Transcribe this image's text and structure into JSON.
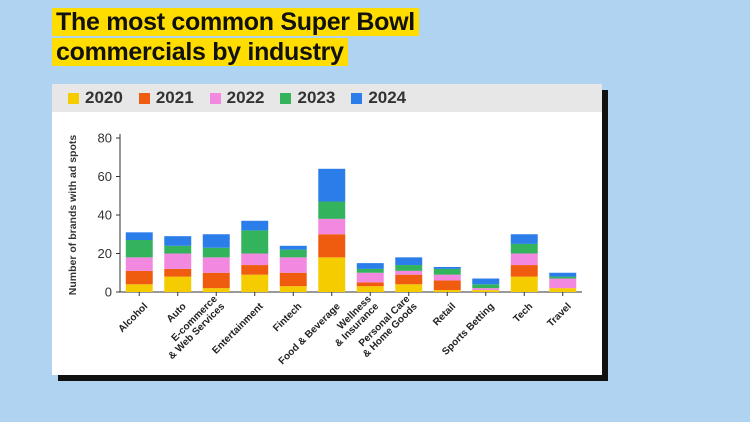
{
  "title": {
    "line1": "The most common Super Bowl",
    "line2": "commercials by industry"
  },
  "colors": {
    "2020": "#f5cc00",
    "2021": "#f05c0f",
    "2022": "#f288e0",
    "2023": "#33b35c",
    "2024": "#2b7de9"
  },
  "legend": [
    "2020",
    "2021",
    "2022",
    "2023",
    "2024"
  ],
  "chart_data": {
    "type": "bar",
    "stacked": true,
    "title": "The most common Super Bowl commercials by industry",
    "xlabel": "",
    "ylabel": "Number of brands with ad spots",
    "ylim": [
      0,
      80
    ],
    "yticks": [
      0,
      20,
      40,
      60,
      80
    ],
    "categories": [
      "Alcohol",
      "Auto",
      "E-commerce\n& Web Services",
      "Entertainment",
      "Fintech",
      "Food & Beverage",
      "Wellness\n& Insurance",
      "Personal Care\n& Home Goods",
      "Retail",
      "Sports Betting",
      "Tech",
      "Travel"
    ],
    "series": [
      {
        "name": "2020",
        "values": [
          4,
          8,
          2,
          9,
          3,
          18,
          3,
          4,
          1,
          1,
          8,
          2
        ]
      },
      {
        "name": "2021",
        "values": [
          7,
          4,
          8,
          5,
          7,
          12,
          2,
          5,
          5,
          0,
          6,
          0
        ]
      },
      {
        "name": "2022",
        "values": [
          7,
          8,
          8,
          6,
          8,
          8,
          5,
          2,
          3,
          1,
          6,
          5
        ]
      },
      {
        "name": "2023",
        "values": [
          9,
          4,
          5,
          12,
          4,
          9,
          2,
          3,
          3,
          2,
          5,
          1
        ]
      },
      {
        "name": "2024",
        "values": [
          4,
          5,
          7,
          5,
          2,
          17,
          3,
          4,
          1,
          3,
          5,
          2
        ]
      }
    ]
  }
}
